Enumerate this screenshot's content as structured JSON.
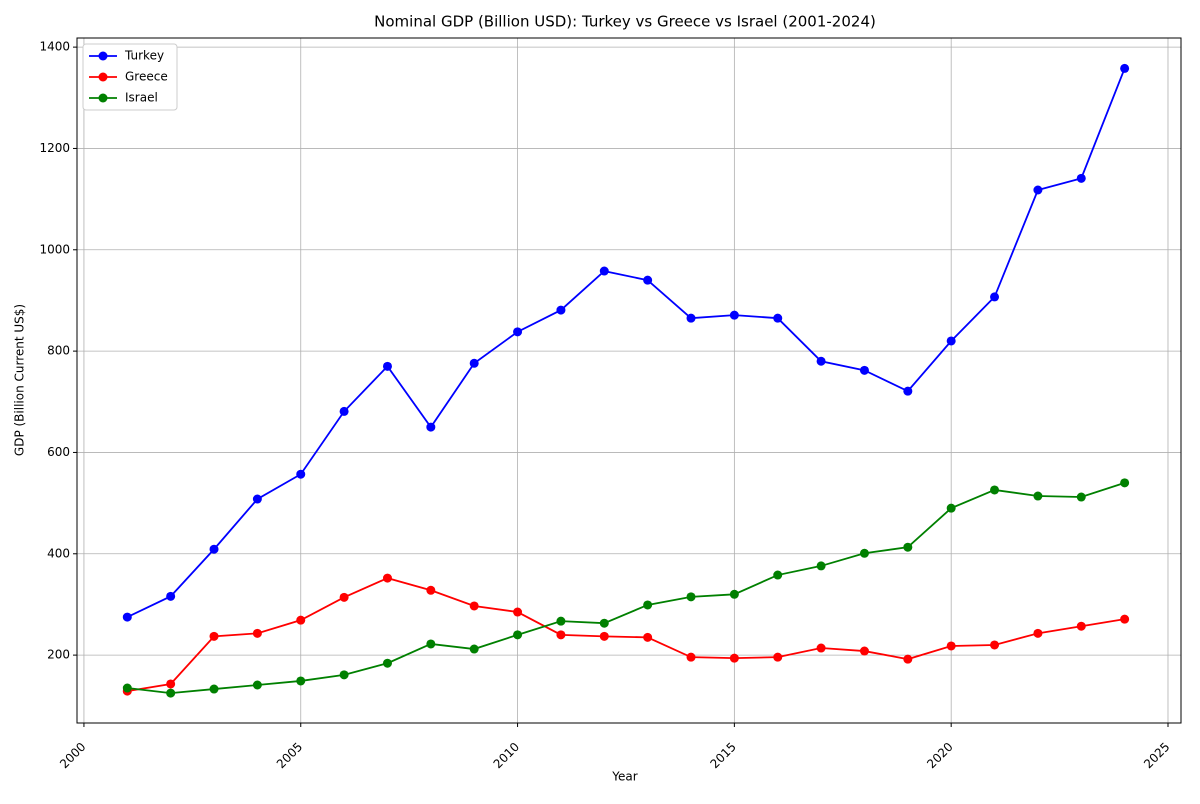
{
  "chart_data": {
    "type": "line",
    "title": "Nominal GDP (Billion USD): Turkey vs Greece vs Israel (2001-2024)",
    "x_label": "Year",
    "y_label": "GDP (Billion Current US$)",
    "x": [
      2001,
      2002,
      2003,
      2004,
      2005,
      2006,
      2007,
      2008,
      2009,
      2010,
      2011,
      2012,
      2013,
      2014,
      2015,
      2016,
      2017,
      2018,
      2019,
      2020,
      2021,
      2022,
      2023,
      2024
    ],
    "series": [
      {
        "name": "Turkey",
        "color": "#0000ff",
        "values": [
          275,
          316,
          409,
          508,
          557,
          681,
          770,
          650,
          776,
          838,
          881,
          958,
          940,
          865,
          871,
          865,
          780,
          762,
          721,
          820,
          907,
          1118,
          1141,
          1358
        ]
      },
      {
        "name": "Greece",
        "color": "#ff0000",
        "values": [
          129,
          143,
          237,
          243,
          269,
          314,
          352,
          328,
          297,
          285,
          240,
          237,
          235,
          196,
          194,
          196,
          214,
          208,
          192,
          218,
          220,
          243,
          257,
          271
        ]
      },
      {
        "name": "Israel",
        "color": "#008000",
        "values": [
          135,
          125,
          133,
          141,
          149,
          161,
          184,
          222,
          212,
          240,
          267,
          263,
          299,
          315,
          320,
          358,
          376,
          401,
          413,
          490,
          526,
          514,
          512,
          540
        ]
      }
    ],
    "xlim": [
      1999.84,
      2025.3
    ],
    "xticks": [
      2000,
      2005,
      2010,
      2015,
      2020,
      2025
    ],
    "ylim": [
      66,
      1418
    ],
    "yticks": [
      200,
      400,
      600,
      800,
      1000,
      1200,
      1400
    ],
    "grid": true,
    "legend": "upper left"
  }
}
